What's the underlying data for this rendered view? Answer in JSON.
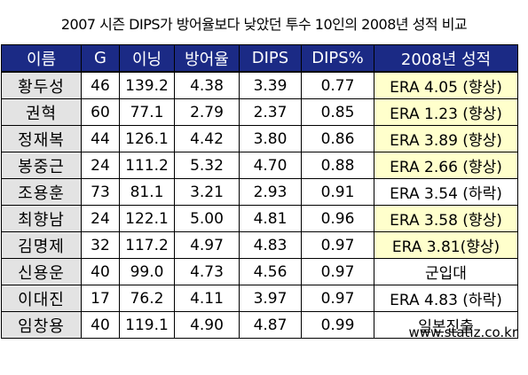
{
  "title": "2007 시즌 DIPS가 방어율보다 낮았던 투수 10인의 2008년 성적 비교",
  "columns": [
    "이름",
    "G",
    "이닝",
    "방어율",
    "DIPS",
    "DIPS%",
    "2008년 성적"
  ],
  "rows": [
    {
      "name": "황두성",
      "g": "46",
      "ip": "139.2",
      "era": "4.38",
      "dips": "3.39",
      "pct": "0.77",
      "result": "ERA 4.05 (향상)",
      "highlight": true
    },
    {
      "name": "권혁",
      "g": "60",
      "ip": "77.1",
      "era": "2.79",
      "dips": "2.37",
      "pct": "0.85",
      "result": "ERA 1.23 (향상)",
      "highlight": true
    },
    {
      "name": "정재복",
      "g": "44",
      "ip": "126.1",
      "era": "4.42",
      "dips": "3.80",
      "pct": "0.86",
      "result": "ERA 3.89 (향상)",
      "highlight": true
    },
    {
      "name": "봉중근",
      "g": "24",
      "ip": "111.2",
      "era": "5.32",
      "dips": "4.70",
      "pct": "0.88",
      "result": "ERA 2.66 (향상)",
      "highlight": true
    },
    {
      "name": "조용훈",
      "g": "73",
      "ip": "81.1",
      "era": "3.21",
      "dips": "2.93",
      "pct": "0.91",
      "result": "ERA 3.54 (하락)",
      "highlight": false
    },
    {
      "name": "최향남",
      "g": "24",
      "ip": "122.1",
      "era": "5.00",
      "dips": "4.81",
      "pct": "0.96",
      "result": "ERA 3.58 (향상)",
      "highlight": true
    },
    {
      "name": "김명제",
      "g": "32",
      "ip": "117.2",
      "era": "4.97",
      "dips": "4.83",
      "pct": "0.97",
      "result": "ERA 3.81(향상)",
      "highlight": true
    },
    {
      "name": "신용운",
      "g": "40",
      "ip": "99.0",
      "era": "4.73",
      "dips": "4.56",
      "pct": "0.97",
      "result": "군입대",
      "highlight": false
    },
    {
      "name": "이대진",
      "g": "17",
      "ip": "76.2",
      "era": "4.11",
      "dips": "3.97",
      "pct": "0.97",
      "result": "ERA 4.83 (하락)",
      "highlight": false
    },
    {
      "name": "임창용",
      "g": "40",
      "ip": "119.1",
      "era": "4.90",
      "dips": "4.87",
      "pct": "0.99",
      "result": "일본진출",
      "highlight": false
    }
  ],
  "source": "www.statiz.co.kr",
  "colors": {
    "header_bg": "#1b2a85",
    "name_bg": "#e3e3e3",
    "highlight_bg": "#ffffcc"
  }
}
